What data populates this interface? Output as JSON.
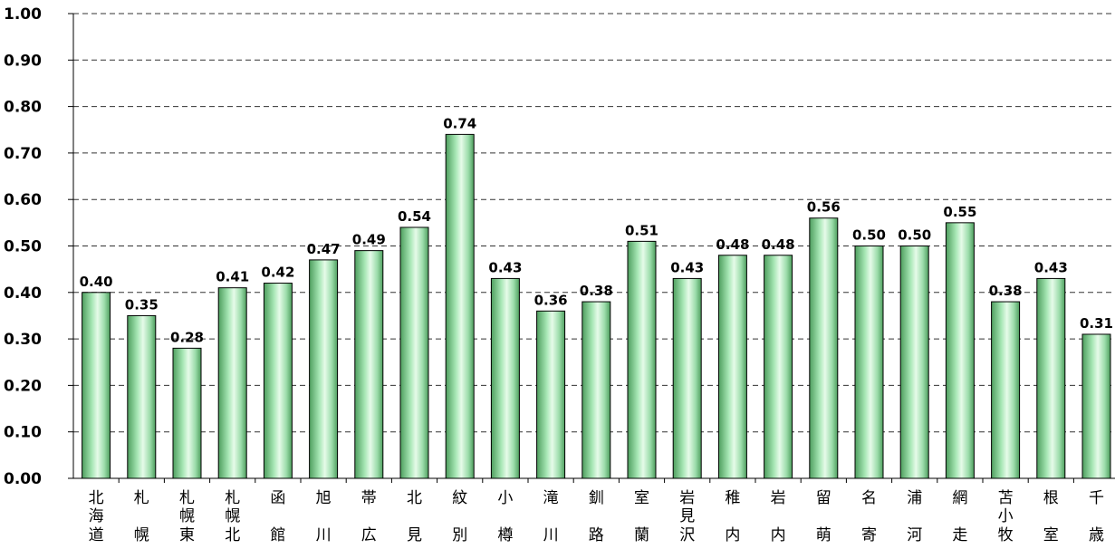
{
  "chart_data": {
    "type": "bar",
    "title": "",
    "xlabel": "",
    "ylabel": "",
    "ylim": [
      0,
      1
    ],
    "yticks": [
      "0.00",
      "0.10",
      "0.20",
      "0.30",
      "0.40",
      "0.50",
      "0.60",
      "0.70",
      "0.80",
      "0.90",
      "1.00"
    ],
    "grid": true,
    "legend": "none",
    "bar_color": "#8fd69f",
    "categories": [
      "北海道",
      "札幌",
      "札幌東",
      "札幌北",
      "函館",
      "旭川",
      "帯広",
      "北見",
      "紋別",
      "小樽",
      "滝川",
      "釧路",
      "室蘭",
      "岩見沢",
      "稚内",
      "岩内",
      "留萌",
      "名寄",
      "浦河",
      "網走",
      "苫小牧",
      "根室",
      "千歳"
    ],
    "values": [
      0.4,
      0.35,
      0.28,
      0.41,
      0.42,
      0.47,
      0.49,
      0.54,
      0.74,
      0.43,
      0.36,
      0.38,
      0.51,
      0.43,
      0.48,
      0.48,
      0.56,
      0.5,
      0.5,
      0.55,
      0.38,
      0.43,
      0.31
    ],
    "data_labels": [
      "0.40",
      "0.35",
      "0.28",
      "0.41",
      "0.42",
      "0.47",
      "0.49",
      "0.54",
      "0.74",
      "0.43",
      "0.36",
      "0.38",
      "0.51",
      "0.43",
      "0.48",
      "0.48",
      "0.56",
      "0.50",
      "0.50",
      "0.55",
      "0.38",
      "0.43",
      "0.31"
    ]
  }
}
